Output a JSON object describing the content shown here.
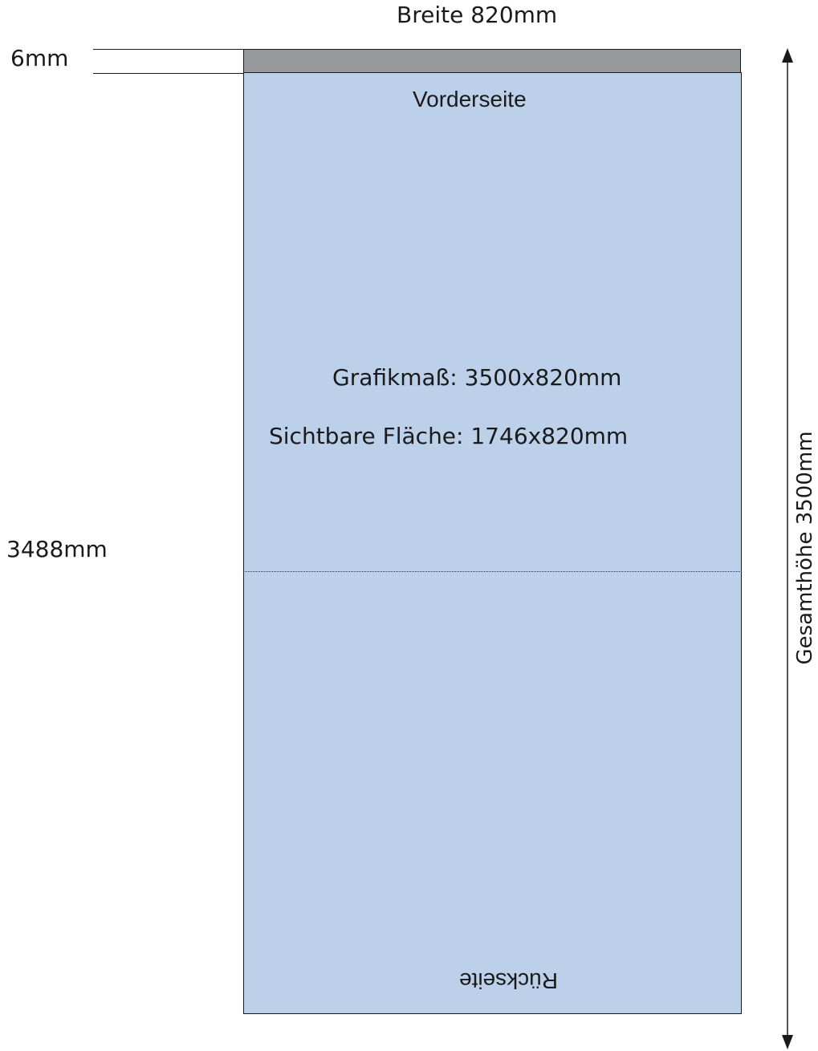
{
  "labels": {
    "width": "Breite 820mm",
    "bleed": "6mm",
    "front": "Vorderseite",
    "back": "Rückseite",
    "graphic_size": "Grafikmaß: 3500x820mm",
    "visible_area": "Sichtbare Fläche: 1746x820mm",
    "height_left": "3488mm",
    "total_height": "Gesamthöhe 3500mm"
  },
  "colors": {
    "panel_fill": "#bdd0ea",
    "bleed_fill": "#97989c",
    "outline": "#1a1a1a"
  }
}
